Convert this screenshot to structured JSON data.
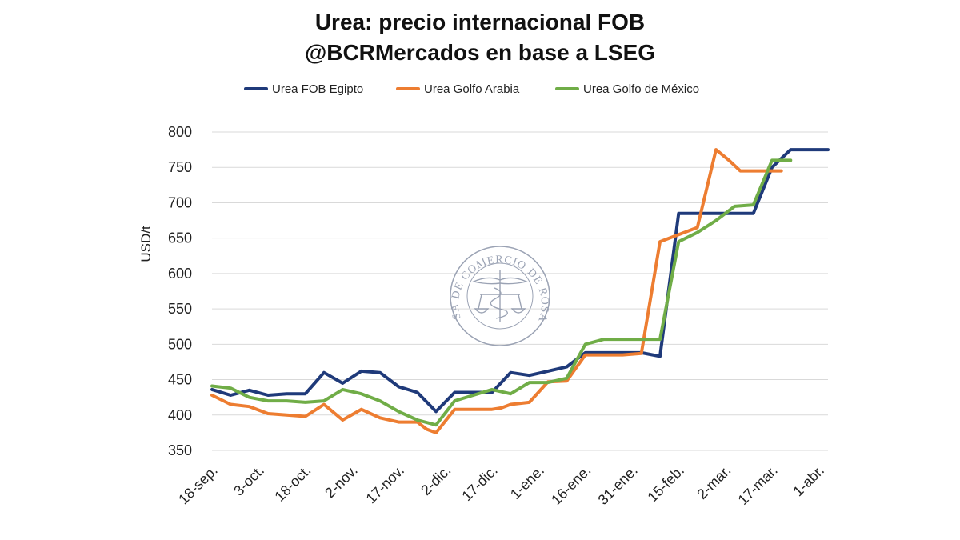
{
  "chart_data": {
    "type": "line",
    "title_lines": [
      "Urea: precio internacional FOB",
      "@BCRMercados en base a LSEG"
    ],
    "ylabel": "USD/t",
    "ylim": [
      350,
      800
    ],
    "yticks": [
      350,
      400,
      450,
      500,
      550,
      600,
      650,
      700,
      750,
      800
    ],
    "grid": true,
    "legend_position": "top",
    "x_tick_labels": [
      "18-sep.",
      "3-oct.",
      "18-oct.",
      "2-nov.",
      "17-nov.",
      "2-dic.",
      "17-dic.",
      "1-ene.",
      "16-ene.",
      "31-ene.",
      "15-feb.",
      "2-mar.",
      "17-mar.",
      "1-abr."
    ],
    "x_tick_positions": [
      0,
      2.5,
      5,
      7.5,
      10,
      12.5,
      15,
      17.5,
      20,
      22.5,
      25,
      27.5,
      30,
      32.5
    ],
    "series": [
      {
        "name": "Urea FOB Egipto",
        "color": "#1f3a7a",
        "x": [
          0,
          1,
          2,
          3,
          4,
          5,
          6,
          7,
          8,
          9,
          10,
          11,
          12,
          13,
          14,
          15,
          16,
          17,
          18,
          19,
          20,
          21,
          22,
          23,
          24,
          25,
          26,
          27,
          28,
          28.5,
          29,
          30,
          31,
          31.5,
          32,
          33
        ],
        "values": [
          436,
          428,
          435,
          428,
          430,
          430,
          460,
          445,
          462,
          460,
          440,
          432,
          405,
          432,
          432,
          432,
          460,
          456,
          462,
          468,
          488,
          488,
          488,
          488,
          483,
          685,
          685,
          685,
          685,
          685,
          685,
          750,
          775,
          775,
          775,
          775
        ]
      },
      {
        "name": "Urea Golfo Arabia",
        "color": "#ed7d31",
        "x": [
          0,
          1,
          2,
          3,
          4,
          5,
          6,
          7,
          8,
          9,
          10,
          11,
          11.5,
          12,
          13,
          14,
          15,
          15.5,
          16,
          17,
          18,
          19,
          20,
          21,
          22,
          23,
          24,
          25,
          26,
          27,
          27.7,
          28.3,
          29,
          30,
          30.5
        ],
        "values": [
          428,
          415,
          412,
          402,
          400,
          398,
          415,
          393,
          408,
          396,
          390,
          390,
          380,
          375,
          408,
          408,
          408,
          410,
          415,
          418,
          447,
          448,
          485,
          485,
          485,
          487,
          645,
          655,
          665,
          775,
          760,
          745,
          745,
          745,
          745
        ]
      },
      {
        "name": "Urea Golfo de México",
        "color": "#70ad47",
        "x": [
          0,
          1,
          2,
          3,
          4,
          5,
          6,
          7,
          8,
          9,
          10,
          11,
          12,
          13,
          14,
          15,
          16,
          17,
          18,
          19,
          20,
          21,
          22,
          23,
          24,
          25,
          26,
          27,
          28,
          29,
          30,
          31
        ],
        "values": [
          441,
          438,
          425,
          420,
          420,
          418,
          420,
          436,
          430,
          420,
          405,
          393,
          386,
          420,
          428,
          436,
          430,
          446,
          446,
          452,
          500,
          507,
          507,
          507,
          507,
          645,
          658,
          675,
          695,
          697,
          760,
          760
        ]
      }
    ]
  },
  "watermark": {
    "text": "BOLSA DE COMERCIO DE ROSARIO",
    "color": "#8a93a8"
  }
}
